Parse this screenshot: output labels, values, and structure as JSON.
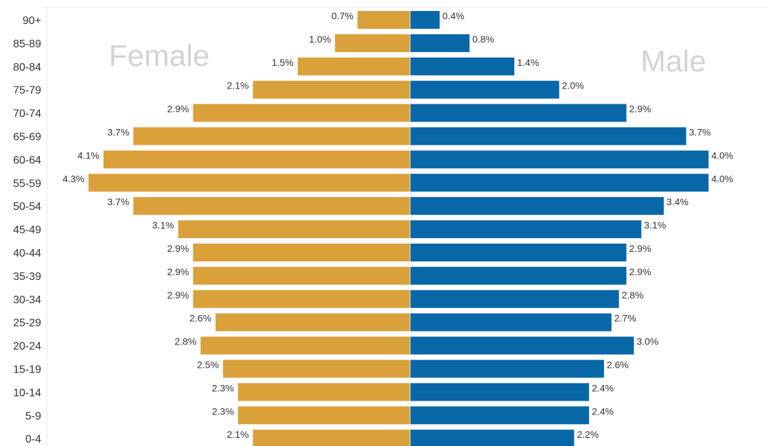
{
  "chart_data": {
    "type": "bar",
    "orientation": "horizontal-diverging",
    "categories": [
      "90+",
      "85-89",
      "80-84",
      "75-79",
      "70-74",
      "65-69",
      "60-64",
      "55-59",
      "50-54",
      "45-49",
      "40-44",
      "35-39",
      "30-34",
      "25-29",
      "20-24",
      "15-19",
      "10-14",
      "5-9",
      "0-4"
    ],
    "series": [
      {
        "name": "Female",
        "side": "left",
        "color": "#DAA03A",
        "values": [
          0.7,
          1.0,
          1.5,
          2.1,
          2.9,
          3.7,
          4.1,
          4.3,
          3.7,
          3.1,
          2.9,
          2.9,
          2.9,
          2.6,
          2.8,
          2.5,
          2.3,
          2.3,
          2.1
        ],
        "labels": [
          "0.7%",
          "1.0%",
          "1.5%",
          "2.1%",
          "2.9%",
          "3.7%",
          "4.1%",
          "4.3%",
          "3.7%",
          "3.1%",
          "2.9%",
          "2.9%",
          "2.9%",
          "2.6%",
          "2.8%",
          "2.5%",
          "2.3%",
          "2.3%",
          "2.1%"
        ]
      },
      {
        "name": "Male",
        "side": "right",
        "color": "#0867A7",
        "values": [
          0.4,
          0.8,
          1.4,
          2.0,
          2.9,
          3.7,
          4.0,
          4.0,
          3.4,
          3.1,
          2.9,
          2.9,
          2.8,
          2.7,
          3.0,
          2.6,
          2.4,
          2.4,
          2.2
        ],
        "labels": [
          "0.4%",
          "0.8%",
          "1.4%",
          "2.0%",
          "2.9%",
          "3.7%",
          "4.0%",
          "4.0%",
          "3.4%",
          "3.1%",
          "2.9%",
          "2.9%",
          "2.8%",
          "2.7%",
          "3.0%",
          "2.6%",
          "2.4%",
          "2.4%",
          "2.2%"
        ]
      }
    ],
    "side_labels": {
      "left": "Female",
      "right": "Male"
    },
    "side_label_color": "#D3D3D3",
    "xlim": [
      0,
      4.3
    ],
    "grid": false,
    "legend": "none"
  }
}
